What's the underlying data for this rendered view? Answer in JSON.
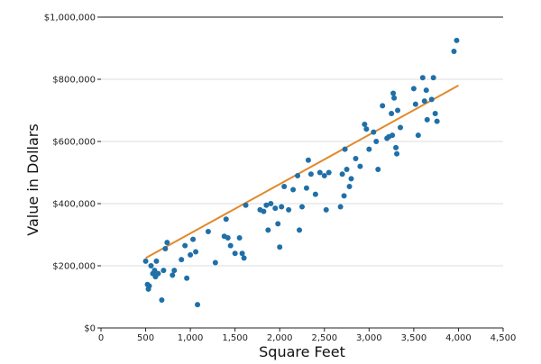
{
  "chart_data": {
    "type": "scatter",
    "xlabel": "Square Feet",
    "ylabel": "Value in Dollars",
    "xlim": [
      0,
      4500
    ],
    "ylim": [
      0,
      1000000
    ],
    "x_ticks": [
      0,
      500,
      1000,
      1500,
      2000,
      2500,
      3000,
      3500,
      4000,
      4500
    ],
    "x_tick_labels": [
      "0",
      "500",
      "1,000",
      "1,500",
      "2,000",
      "2,500",
      "3,000",
      "3,500",
      "4,000",
      "4,500"
    ],
    "y_ticks": [
      0,
      200000,
      400000,
      600000,
      800000,
      1000000
    ],
    "y_tick_labels": [
      "$0",
      "$200,000",
      "$400,000",
      "$600,000",
      "$800,000",
      "$1,000,000"
    ],
    "grid": "horizontal",
    "point_color": "#1f6fa8",
    "line_color": "#e08a2c",
    "trend_line": {
      "x": [
        500,
        4000
      ],
      "y": [
        225000,
        780000
      ]
    },
    "points": [
      {
        "x": 500,
        "y": 215000
      },
      {
        "x": 520,
        "y": 140000
      },
      {
        "x": 540,
        "y": 135000
      },
      {
        "x": 530,
        "y": 125000
      },
      {
        "x": 560,
        "y": 200000
      },
      {
        "x": 580,
        "y": 175000
      },
      {
        "x": 600,
        "y": 185000
      },
      {
        "x": 610,
        "y": 165000
      },
      {
        "x": 620,
        "y": 215000
      },
      {
        "x": 640,
        "y": 175000
      },
      {
        "x": 680,
        "y": 90000
      },
      {
        "x": 700,
        "y": 185000
      },
      {
        "x": 720,
        "y": 255000
      },
      {
        "x": 740,
        "y": 275000
      },
      {
        "x": 800,
        "y": 170000
      },
      {
        "x": 820,
        "y": 185000
      },
      {
        "x": 900,
        "y": 220000
      },
      {
        "x": 940,
        "y": 265000
      },
      {
        "x": 960,
        "y": 160000
      },
      {
        "x": 1000,
        "y": 235000
      },
      {
        "x": 1030,
        "y": 285000
      },
      {
        "x": 1060,
        "y": 245000
      },
      {
        "x": 1080,
        "y": 75000
      },
      {
        "x": 1200,
        "y": 310000
      },
      {
        "x": 1280,
        "y": 210000
      },
      {
        "x": 1380,
        "y": 295000
      },
      {
        "x": 1400,
        "y": 350000
      },
      {
        "x": 1420,
        "y": 290000
      },
      {
        "x": 1450,
        "y": 265000
      },
      {
        "x": 1500,
        "y": 240000
      },
      {
        "x": 1550,
        "y": 290000
      },
      {
        "x": 1580,
        "y": 240000
      },
      {
        "x": 1600,
        "y": 225000
      },
      {
        "x": 1620,
        "y": 395000
      },
      {
        "x": 1780,
        "y": 380000
      },
      {
        "x": 1820,
        "y": 375000
      },
      {
        "x": 1850,
        "y": 395000
      },
      {
        "x": 1870,
        "y": 315000
      },
      {
        "x": 1900,
        "y": 400000
      },
      {
        "x": 1950,
        "y": 385000
      },
      {
        "x": 1980,
        "y": 335000
      },
      {
        "x": 2000,
        "y": 260000
      },
      {
        "x": 2020,
        "y": 390000
      },
      {
        "x": 2050,
        "y": 455000
      },
      {
        "x": 2100,
        "y": 380000
      },
      {
        "x": 2150,
        "y": 445000
      },
      {
        "x": 2200,
        "y": 490000
      },
      {
        "x": 2220,
        "y": 315000
      },
      {
        "x": 2250,
        "y": 390000
      },
      {
        "x": 2300,
        "y": 450000
      },
      {
        "x": 2320,
        "y": 540000
      },
      {
        "x": 2350,
        "y": 495000
      },
      {
        "x": 2400,
        "y": 430000
      },
      {
        "x": 2450,
        "y": 500000
      },
      {
        "x": 2500,
        "y": 490000
      },
      {
        "x": 2520,
        "y": 380000
      },
      {
        "x": 2550,
        "y": 500000
      },
      {
        "x": 2680,
        "y": 390000
      },
      {
        "x": 2700,
        "y": 495000
      },
      {
        "x": 2720,
        "y": 425000
      },
      {
        "x": 2730,
        "y": 575000
      },
      {
        "x": 2750,
        "y": 510000
      },
      {
        "x": 2780,
        "y": 455000
      },
      {
        "x": 2800,
        "y": 480000
      },
      {
        "x": 2850,
        "y": 545000
      },
      {
        "x": 2900,
        "y": 520000
      },
      {
        "x": 2950,
        "y": 655000
      },
      {
        "x": 2970,
        "y": 640000
      },
      {
        "x": 3000,
        "y": 575000
      },
      {
        "x": 3050,
        "y": 630000
      },
      {
        "x": 3080,
        "y": 600000
      },
      {
        "x": 3100,
        "y": 510000
      },
      {
        "x": 3150,
        "y": 715000
      },
      {
        "x": 3200,
        "y": 610000
      },
      {
        "x": 3220,
        "y": 615000
      },
      {
        "x": 3250,
        "y": 690000
      },
      {
        "x": 3260,
        "y": 620000
      },
      {
        "x": 3270,
        "y": 755000
      },
      {
        "x": 3280,
        "y": 740000
      },
      {
        "x": 3300,
        "y": 580000
      },
      {
        "x": 3310,
        "y": 560000
      },
      {
        "x": 3320,
        "y": 700000
      },
      {
        "x": 3350,
        "y": 645000
      },
      {
        "x": 3500,
        "y": 770000
      },
      {
        "x": 3520,
        "y": 720000
      },
      {
        "x": 3550,
        "y": 620000
      },
      {
        "x": 3600,
        "y": 805000
      },
      {
        "x": 3620,
        "y": 730000
      },
      {
        "x": 3640,
        "y": 765000
      },
      {
        "x": 3650,
        "y": 670000
      },
      {
        "x": 3700,
        "y": 735000
      },
      {
        "x": 3720,
        "y": 805000
      },
      {
        "x": 3740,
        "y": 690000
      },
      {
        "x": 3760,
        "y": 665000
      },
      {
        "x": 3950,
        "y": 890000
      },
      {
        "x": 3980,
        "y": 925000
      }
    ]
  }
}
